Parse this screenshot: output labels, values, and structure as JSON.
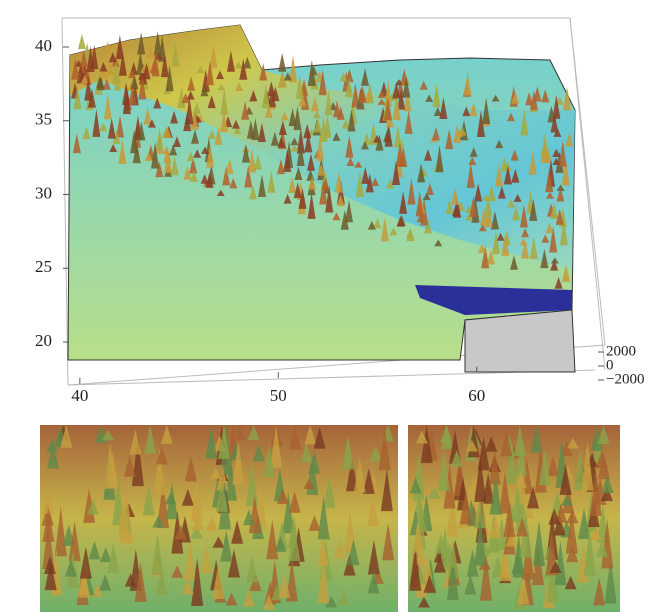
{
  "chart_data": {
    "type": "surface",
    "xlim": [
      39,
      65
    ],
    "xticks": [
      40,
      50,
      60
    ],
    "ylim": [
      19,
      42
    ],
    "yticks": [
      20,
      25,
      30,
      35,
      40
    ],
    "zlim": [
      -2000,
      2000
    ],
    "zticks": [
      2000,
      0,
      {
        "value": -2000,
        "label": "−2000"
      }
    ]
  }
}
